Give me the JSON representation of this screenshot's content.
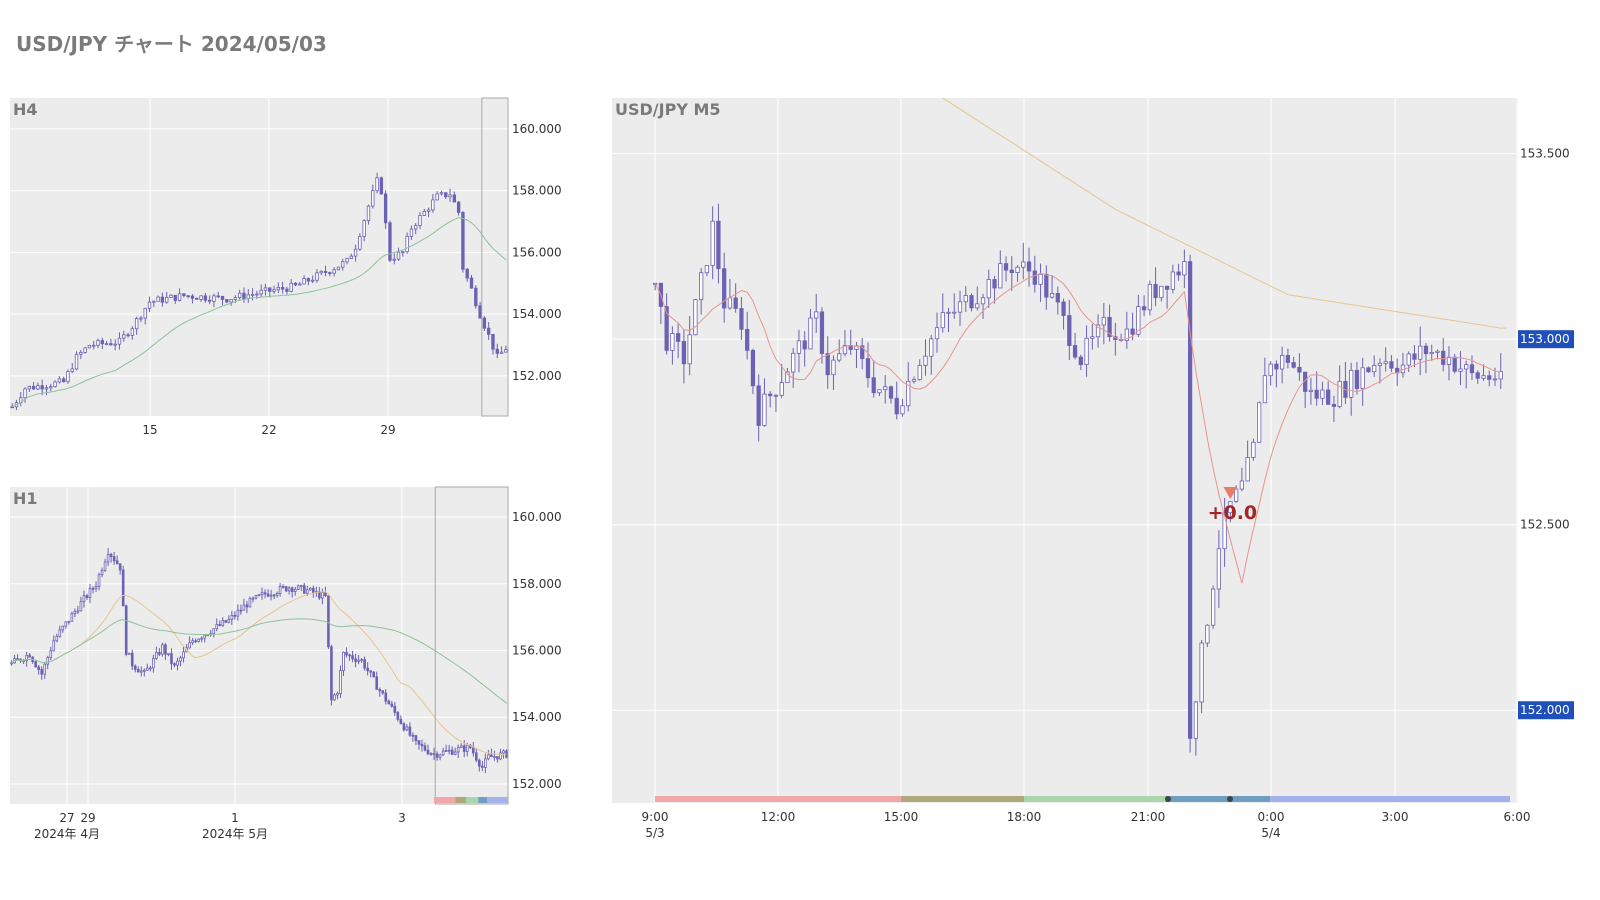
{
  "title": "USD/JPY チャート 2024/05/03",
  "colors": {
    "bg": "#ececec",
    "grid": "#ffffff",
    "candle": "#6b62b4",
    "ma_fast": "#e8958e",
    "ma_slow": "#e6c590",
    "ma_long": "#8fc29a",
    "badge": "#1f4fb8",
    "trade_marker": "#e87b6c",
    "trade_text": "#a52525",
    "session_bar": [
      "#f2a8a8",
      "#b0a77a",
      "#a9d6ab",
      "#6e9fc0",
      "#a3b2ec"
    ]
  },
  "chart_data": [
    {
      "id": "h4",
      "type": "candlestick",
      "label": "H4",
      "ylim": [
        150.7,
        161.0
      ],
      "y_ticks": [
        152,
        154,
        156,
        158,
        160
      ],
      "y_tick_labels": [
        "152.000",
        "154.000",
        "156.000",
        "158.000",
        "160.000"
      ],
      "x_tick_labels": [
        {
          "label": "15"
        },
        {
          "label": "22"
        },
        {
          "label": "29"
        }
      ],
      "anchors": [
        [
          0,
          151.0
        ],
        [
          3,
          151.6
        ],
        [
          12,
          151.8
        ],
        [
          15,
          152.6
        ],
        [
          18,
          153.0
        ],
        [
          25,
          153.1
        ],
        [
          28,
          153.6
        ],
        [
          32,
          154.4
        ],
        [
          40,
          154.6
        ],
        [
          50,
          154.5
        ],
        [
          58,
          154.7
        ],
        [
          66,
          154.9
        ],
        [
          72,
          155.3
        ],
        [
          78,
          155.7
        ],
        [
          80,
          156.2
        ],
        [
          83,
          157.5
        ],
        [
          85,
          158.3
        ],
        [
          86,
          158.0
        ],
        [
          88,
          155.8
        ],
        [
          91,
          156.0
        ],
        [
          93,
          156.8
        ],
        [
          96,
          157.3
        ],
        [
          99,
          157.8
        ],
        [
          102,
          157.9
        ],
        [
          104,
          157.3
        ],
        [
          105,
          155.5
        ],
        [
          107,
          154.8
        ],
        [
          109,
          154.0
        ],
        [
          111,
          153.3
        ],
        [
          113,
          152.6
        ],
        [
          115,
          152.9
        ]
      ],
      "ma": [
        {
          "name": "",
          "color_key": "ma_long",
          "period": 25
        }
      ],
      "highlight_last": 6
    },
    {
      "id": "h1",
      "type": "candlestick",
      "label": "H1",
      "ylim": [
        151.4,
        160.9
      ],
      "y_ticks": [
        152,
        154,
        156,
        158,
        160
      ],
      "y_tick_labels": [
        "152.000",
        "154.000",
        "156.000",
        "158.000",
        "160.000"
      ],
      "x_tick_labels": [
        {
          "label": "27"
        },
        {
          "label": "29"
        },
        {
          "label": "1"
        },
        {
          "label": "3"
        }
      ],
      "x_sublabels": [
        {
          "label": "2024年 4月"
        },
        {
          "label": "2024年 5月"
        }
      ],
      "anchors": [
        [
          0,
          155.6
        ],
        [
          6,
          155.9
        ],
        [
          10,
          155.3
        ],
        [
          14,
          156.3
        ],
        [
          22,
          157.3
        ],
        [
          28,
          158.0
        ],
        [
          32,
          159.0
        ],
        [
          36,
          158.5
        ],
        [
          38,
          156.0
        ],
        [
          40,
          155.6
        ],
        [
          44,
          155.3
        ],
        [
          50,
          156.1
        ],
        [
          54,
          155.5
        ],
        [
          60,
          156.3
        ],
        [
          66,
          156.6
        ],
        [
          72,
          156.9
        ],
        [
          78,
          157.4
        ],
        [
          84,
          157.7
        ],
        [
          92,
          157.9
        ],
        [
          98,
          157.8
        ],
        [
          104,
          157.6
        ],
        [
          106,
          154.5
        ],
        [
          108,
          154.8
        ],
        [
          110,
          155.9
        ],
        [
          116,
          155.7
        ],
        [
          122,
          154.8
        ],
        [
          128,
          154.0
        ],
        [
          134,
          153.2
        ],
        [
          140,
          152.9
        ],
        [
          146,
          153.0
        ],
        [
          152,
          153.1
        ],
        [
          156,
          152.5
        ],
        [
          158,
          152.8
        ],
        [
          164,
          152.9
        ]
      ],
      "ma": [
        {
          "name": "",
          "color_key": "ma_slow",
          "period": 24
        },
        {
          "name": "",
          "color_key": "ma_long",
          "period": 70
        }
      ],
      "highlight_last": 24,
      "session_strip": true
    },
    {
      "id": "m5",
      "type": "candlestick",
      "label": "USD/JPY M5",
      "ylim": [
        151.75,
        153.65
      ],
      "y_ticks": [
        152.0,
        152.5,
        153.0,
        153.5
      ],
      "y_tick_labels": [
        "152.000",
        "152.500",
        "153.000",
        "153.500"
      ],
      "badge_ticks": [
        "152.000",
        "153.000"
      ],
      "x_tick_labels": [
        {
          "label": "9:00"
        },
        {
          "label": "12:00"
        },
        {
          "label": "15:00"
        },
        {
          "label": "18:00"
        },
        {
          "label": "21:00"
        },
        {
          "label": "0:00"
        },
        {
          "label": "3:00"
        },
        {
          "label": "6:00"
        }
      ],
      "x_sublabels": [
        {
          "label": "5/3"
        },
        {
          "label": "5/4"
        }
      ],
      "anchors": [
        [
          0,
          153.15
        ],
        [
          2,
          153.0
        ],
        [
          5,
          152.95
        ],
        [
          8,
          153.15
        ],
        [
          10,
          153.3
        ],
        [
          12,
          153.1
        ],
        [
          15,
          153.05
        ],
        [
          18,
          152.8
        ],
        [
          20,
          152.85
        ],
        [
          24,
          152.95
        ],
        [
          28,
          153.05
        ],
        [
          30,
          152.92
        ],
        [
          34,
          152.98
        ],
        [
          38,
          152.88
        ],
        [
          42,
          152.82
        ],
        [
          46,
          152.95
        ],
        [
          50,
          153.05
        ],
        [
          54,
          153.1
        ],
        [
          58,
          153.15
        ],
        [
          62,
          153.2
        ],
        [
          66,
          153.18
        ],
        [
          70,
          153.08
        ],
        [
          74,
          152.95
        ],
        [
          78,
          153.03
        ],
        [
          82,
          153.02
        ],
        [
          86,
          153.12
        ],
        [
          90,
          153.18
        ],
        [
          92,
          153.2
        ],
        [
          93,
          151.95
        ],
        [
          94,
          152.05
        ],
        [
          96,
          152.25
        ],
        [
          98,
          152.45
        ],
        [
          100,
          152.55
        ],
        [
          102,
          152.6
        ],
        [
          104,
          152.7
        ],
        [
          106,
          152.92
        ],
        [
          110,
          152.95
        ],
        [
          114,
          152.85
        ],
        [
          118,
          152.85
        ],
        [
          122,
          152.9
        ],
        [
          126,
          152.95
        ],
        [
          130,
          152.93
        ],
        [
          134,
          152.97
        ],
        [
          138,
          152.95
        ],
        [
          142,
          152.9
        ],
        [
          146,
          152.9
        ],
        [
          147,
          152.88
        ]
      ],
      "ma": [
        {
          "name": "",
          "color_key": "ma_fast",
          "period": 10
        }
      ],
      "slow_curve": [
        [
          0,
          154.2
        ],
        [
          40,
          153.75
        ],
        [
          80,
          153.35
        ],
        [
          110,
          153.12
        ],
        [
          147,
          153.03
        ]
      ],
      "trade": {
        "at": 100,
        "price": 152.58,
        "label": "+0.0"
      },
      "session_strip": true,
      "session_points": [
        21.5,
        23.0
      ]
    }
  ]
}
